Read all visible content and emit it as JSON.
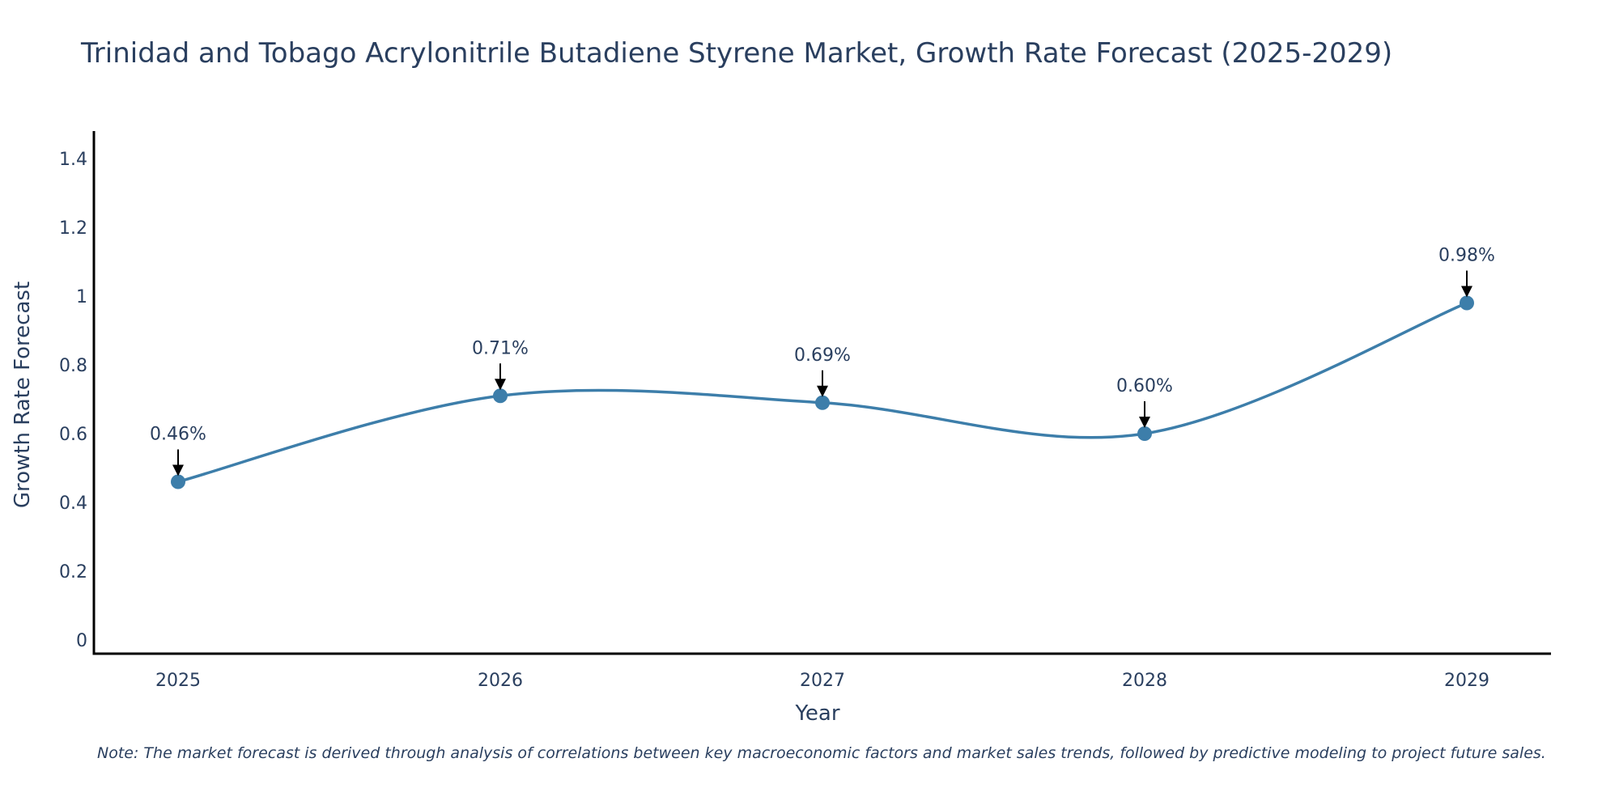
{
  "chart_data": {
    "type": "line",
    "title": "Trinidad and Tobago Acrylonitrile Butadiene Styrene Market, Growth Rate Forecast (2025-2029)",
    "xlabel": "Year",
    "ylabel": "Growth Rate Forecast",
    "categories": [
      "2025",
      "2026",
      "2027",
      "2028",
      "2029"
    ],
    "values": [
      0.46,
      0.71,
      0.69,
      0.6,
      0.98
    ],
    "data_labels": [
      "0.46%",
      "0.71%",
      "0.69%",
      "0.60%",
      "0.98%"
    ],
    "y_ticks": [
      0,
      0.2,
      0.4,
      0.6,
      0.8,
      1,
      1.2,
      1.4
    ],
    "y_tick_labels": [
      "0",
      "0.2",
      "0.4",
      "0.6",
      "0.8",
      "1",
      "1.2",
      "1.4"
    ],
    "ylim": [
      -0.04,
      1.48
    ],
    "line_shape": "spline",
    "grid": false,
    "legend": "none",
    "line_color": "#3d7eaa",
    "marker_color": "#3d7eaa",
    "arrow_color": "#000000"
  },
  "note": "Note: The market forecast is derived through analysis of correlations between key macroeconomic factors and market sales trends, followed by predictive modeling to project future sales."
}
